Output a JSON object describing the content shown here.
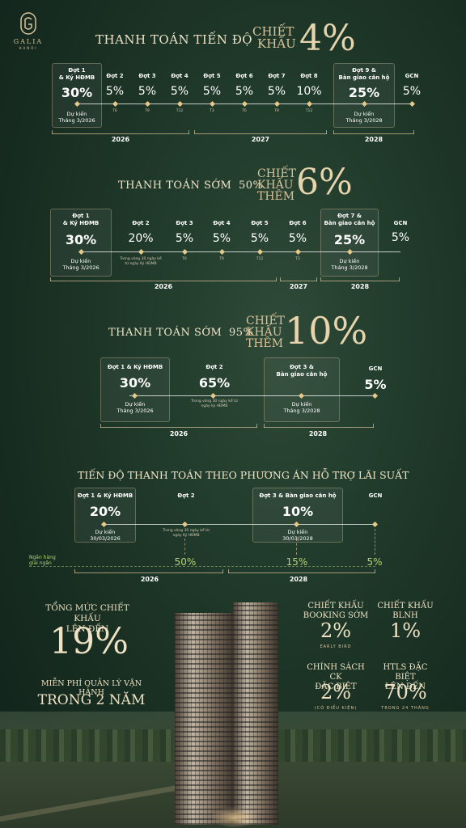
{
  "logo": {
    "name": "GALIA",
    "city": "HANOI"
  },
  "plan1": {
    "title": "THANH TOÁN TIẾN ĐỘ",
    "discount_label_1": "CHIẾT",
    "discount_label_2": "KHẤU",
    "discount_value": "4%",
    "stages": [
      {
        "label1": "Đợt 1",
        "label2": "& Ký HĐMB",
        "pct": "30%",
        "note1": "Dự kiến",
        "note2": "Tháng 3/2026",
        "tick": ""
      },
      {
        "label1": "Đợt 2",
        "label2": "",
        "pct": "5%",
        "tick": "T6"
      },
      {
        "label1": "Đợt 3",
        "label2": "",
        "pct": "5%",
        "tick": "T9"
      },
      {
        "label1": "Đợt 4",
        "label2": "",
        "pct": "5%",
        "tick": "T12"
      },
      {
        "label1": "Đợt 5",
        "label2": "",
        "pct": "5%",
        "tick": "T3"
      },
      {
        "label1": "Đợt 6",
        "label2": "",
        "pct": "5%",
        "tick": "T6"
      },
      {
        "label1": "Đợt 7",
        "label2": "",
        "pct": "5%",
        "tick": "T9"
      },
      {
        "label1": "Đợt 8",
        "label2": "",
        "pct": "10%",
        "tick": "T12"
      },
      {
        "label1": "Đợt 9 &",
        "label2": "Bàn giao căn hộ",
        "pct": "25%",
        "note1": "Dự kiến",
        "note2": "Tháng 3/2028",
        "tick": ""
      },
      {
        "label1": "GCN",
        "label2": "",
        "pct": "5%",
        "tick": ""
      }
    ],
    "years": [
      "2026",
      "2027",
      "2028"
    ]
  },
  "plan2": {
    "title_a": "THANH TOÁN SỚM",
    "title_b": "50%",
    "discount_label_1": "CHIẾT",
    "discount_label_2": "KHẤU",
    "discount_label_3": "THÊM",
    "discount_value": "6%",
    "stages": [
      {
        "label1": "Đợt 1",
        "label2": "& Ký HĐMB",
        "pct": "30%",
        "note1": "Dự kiến",
        "note2": "Tháng 3/2026",
        "tick": ""
      },
      {
        "label1": "Đợt 2",
        "label2": "",
        "pct": "20%",
        "tick": "Trong vòng 30 ngày kể từ ngày Ký HĐMB"
      },
      {
        "label1": "Đợt 3",
        "label2": "",
        "pct": "5%",
        "tick": "T6"
      },
      {
        "label1": "Đợt 4",
        "label2": "",
        "pct": "5%",
        "tick": "T9"
      },
      {
        "label1": "Đợt 5",
        "label2": "",
        "pct": "5%",
        "tick": "T12"
      },
      {
        "label1": "Đợt 6",
        "label2": "",
        "pct": "5%",
        "tick": "T3"
      },
      {
        "label1": "Đợt 7 &",
        "label2": "Bàn giao căn hộ",
        "pct": "25%",
        "note1": "Dự kiến",
        "note2": "Tháng 3/2028",
        "tick": ""
      },
      {
        "label1": "GCN",
        "label2": "",
        "pct": "5%",
        "tick": ""
      }
    ],
    "years": [
      "2026",
      "2027",
      "2028"
    ]
  },
  "plan3": {
    "title_a": "THANH TOÁN SỚM",
    "title_b": "95%",
    "discount_label_1": "CHIẾT",
    "discount_label_2": "KHẤU",
    "discount_label_3": "THÊM",
    "discount_value": "10%",
    "stages": [
      {
        "label1": "Đợt 1 & Ký HĐMB",
        "pct": "30%",
        "note1": "Dự kiến",
        "note2": "Tháng 3/2026"
      },
      {
        "label1": "Đợt 2",
        "pct": "65%",
        "tick": "Trong vòng 30 ngày kể từ ngày ký HĐMB"
      },
      {
        "label1": "Đợt 3 &",
        "label2": "Bàn giao căn hộ",
        "note1": "Dự kiến",
        "note2": "Tháng 3/2028"
      },
      {
        "label1": "GCN",
        "pct": "5%"
      }
    ],
    "years": [
      "2026",
      "2028"
    ]
  },
  "plan4": {
    "title": "TIẾN ĐỘ THANH TOÁN THEO PHƯƠNG ÁN HỖ TRỢ LÃI SUẤT",
    "stages": [
      {
        "label": "Đợt 1 & Ký HĐMB",
        "pct": "20%",
        "note1": "Dự kiến",
        "note2": "30/03/2026"
      },
      {
        "label": "Đợt 2",
        "tick": "Trong vòng 30 ngày kể từ ngày Ký HĐMB",
        "bank_pct": "50%"
      },
      {
        "label": "Đợt 3 & Bàn giao căn hộ",
        "pct": "10%",
        "note1": "Dự kiến",
        "note2": "30/03/2028",
        "bank_pct": "15%"
      },
      {
        "label": "GCN",
        "bank_pct": "5%"
      }
    ],
    "bank_label_1": "Ngân hàng",
    "bank_label_2": "giải ngân",
    "years": [
      "2026",
      "2028"
    ]
  },
  "summary": {
    "total_line1": "TỔNG MỨC CHIẾT KHẤU",
    "total_line2": "LÊN ĐẾN",
    "total_value": "19%",
    "free_line": "MIỄN PHÍ QUẢN LÝ VẬN HÀNH",
    "free_value": "TRONG 2 NĂM",
    "early_line1": "CHIẾT KHẤU",
    "early_line2": "BOOKING SỚM",
    "early_value": "2%",
    "early_sub": "EARLY BIRD",
    "blnh_line1": "CHIẾT KHẤU",
    "blnh_line2": "BLNH",
    "blnh_value": "1%",
    "special_line1": "CHÍNH SÁCH CK",
    "special_line2": "ĐẶC BIỆT",
    "special_value": "2%",
    "special_sub": "(CÓ ĐIỀU KIỆN)",
    "htls_line1": "HTLS ĐẶC BIỆT",
    "htls_line2": "LÊN ĐẾN",
    "htls_value": "70%",
    "htls_sub": "TRONG 24 THÁNG"
  }
}
